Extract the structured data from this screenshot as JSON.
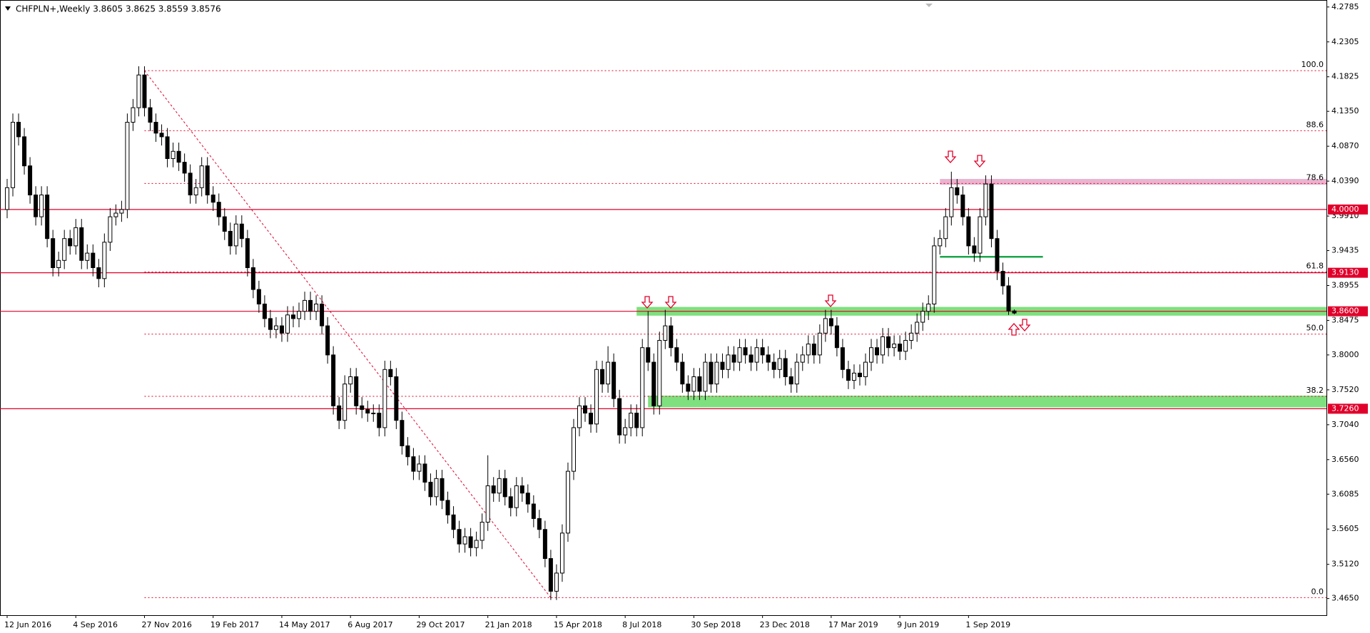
{
  "chart_data": {
    "type": "candlestick",
    "title": "CHFPLN+,Weekly  3.8605 3.8625 3.8559 3.8576",
    "ylim": [
      3.4421,
      4.2881
    ],
    "yticks": [
      4.2785,
      4.2305,
      4.1825,
      {
        "value": 4.135,
        "label": "4.1350"
      },
      {
        "value": 4.087,
        "label": "4.0870"
      },
      {
        "value": 4.039,
        "label": "4.0390"
      },
      {
        "value": 3.991,
        "label": "3.9910"
      },
      3.9435,
      3.8955,
      3.8475,
      {
        "value": 3.8,
        "label": "3.8000"
      },
      {
        "value": 3.752,
        "label": "3.7520"
      },
      {
        "value": 3.704,
        "label": "3.7040"
      },
      {
        "value": 3.656,
        "label": "3.6560"
      },
      3.6085,
      3.5605,
      {
        "value": 3.512,
        "label": "3.5120"
      },
      {
        "value": 3.465,
        "label": "3.4650"
      }
    ],
    "xticks": [
      {
        "value": 0,
        "label": "12 Jun 2016"
      },
      {
        "value": 12,
        "label": "4 Sep 2016"
      },
      {
        "value": 24,
        "label": "27 Nov 2016"
      },
      {
        "value": 36,
        "label": "19 Feb 2017"
      },
      {
        "value": 48,
        "label": "14 May 2017"
      },
      {
        "value": 60,
        "label": "6 Aug 2017"
      },
      {
        "value": 72,
        "label": "29 Oct 2017"
      },
      {
        "value": 84,
        "label": "21 Jan 2018"
      },
      {
        "value": 96,
        "label": "15 Apr 2018"
      },
      {
        "value": 108,
        "label": "8 Jul 2018"
      },
      {
        "value": 120,
        "label": "30 Sep 2018"
      },
      {
        "value": 132,
        "label": "23 Dec 2018"
      },
      {
        "value": 144,
        "label": "17 Mar 2019"
      },
      {
        "value": 156,
        "label": "9 Jun 2019"
      },
      {
        "value": 168,
        "label": "1 Sep 2019"
      }
    ],
    "levels": [
      {
        "value": 4.0,
        "label": "4.0000"
      },
      {
        "value": 3.913,
        "label": "3.9130"
      },
      {
        "value": 3.86,
        "label": "3.8600"
      },
      {
        "value": 3.726,
        "label": "3.7260"
      }
    ],
    "level_color": "#e0002a",
    "fibonacci": {
      "from": 24,
      "to": 95,
      "color": "#e0002a",
      "levels": [
        {
          "ratio": "100.0",
          "price": 4.1909
        },
        {
          "ratio": "88.6",
          "price": 4.1083
        },
        {
          "ratio": "78.6",
          "price": 4.0358
        },
        {
          "ratio": "61.8",
          "price": 3.9141
        },
        {
          "ratio": "50.0",
          "price": 3.8286
        },
        {
          "ratio": "38.2",
          "price": 3.743
        },
        {
          "ratio": "0.0",
          "price": 3.4662
        }
      ]
    },
    "zones": [
      {
        "low": 3.854,
        "high": 3.866,
        "from": 110,
        "color": "#7ee07e"
      },
      {
        "low": 3.728,
        "high": 3.744,
        "from": 112,
        "color": "#7ee07e"
      },
      {
        "low": 4.034,
        "high": 4.042,
        "from": 163,
        "color": "#e8b4d0"
      }
    ],
    "segments": [
      {
        "value": 3.935,
        "from": 163,
        "to": 181,
        "color": "#1aa64a"
      }
    ],
    "up_color": "#ffffff",
    "down_color": "#000000",
    "candles": [
      [
        4.0,
        4.042,
        3.988,
        4.03
      ],
      [
        4.03,
        4.132,
        4.018,
        4.12
      ],
      [
        4.12,
        4.132,
        4.088,
        4.1
      ],
      [
        4.1,
        4.112,
        4.048,
        4.06
      ],
      [
        4.06,
        4.072,
        4.008,
        4.02
      ],
      [
        4.02,
        4.032,
        3.978,
        3.99
      ],
      [
        3.99,
        4.032,
        3.978,
        4.02
      ],
      [
        4.02,
        4.032,
        3.948,
        3.96
      ],
      [
        3.96,
        3.972,
        3.908,
        3.92
      ],
      [
        3.92,
        3.942,
        3.908,
        3.93
      ],
      [
        3.93,
        3.972,
        3.918,
        3.96
      ],
      [
        3.96,
        3.972,
        3.938,
        3.95
      ],
      [
        3.95,
        3.987,
        3.938,
        3.975
      ],
      [
        3.975,
        3.987,
        3.918,
        3.93
      ],
      [
        3.93,
        3.952,
        3.918,
        3.94
      ],
      [
        3.94,
        3.952,
        3.908,
        3.92
      ],
      [
        3.92,
        3.932,
        3.893,
        3.905
      ],
      [
        3.905,
        3.967,
        3.893,
        3.955
      ],
      [
        3.955,
        4.002,
        3.943,
        3.99
      ],
      [
        3.99,
        4.007,
        3.978,
        3.995
      ],
      [
        3.995,
        4.012,
        3.983,
        4.0
      ],
      [
        4.0,
        4.132,
        3.988,
        4.12
      ],
      [
        4.12,
        4.152,
        4.108,
        4.14
      ],
      [
        4.14,
        4.197,
        4.128,
        4.185
      ],
      [
        4.185,
        4.197,
        4.128,
        4.14
      ],
      [
        4.14,
        4.152,
        4.108,
        4.12
      ],
      [
        4.12,
        4.132,
        4.093,
        4.105
      ],
      [
        4.105,
        4.117,
        4.088,
        4.1
      ],
      [
        4.1,
        4.112,
        4.058,
        4.07
      ],
      [
        4.07,
        4.092,
        4.058,
        4.08
      ],
      [
        4.08,
        4.092,
        4.053,
        4.065
      ],
      [
        4.065,
        4.077,
        4.038,
        4.05
      ],
      [
        4.05,
        4.062,
        4.008,
        4.02
      ],
      [
        4.02,
        4.042,
        4.008,
        4.03
      ],
      [
        4.03,
        4.072,
        4.018,
        4.06
      ],
      [
        4.06,
        4.072,
        4.008,
        4.02
      ],
      [
        4.02,
        4.032,
        3.998,
        4.01
      ],
      [
        4.01,
        4.022,
        3.978,
        3.99
      ],
      [
        3.99,
        4.002,
        3.958,
        3.97
      ],
      [
        3.97,
        3.982,
        3.938,
        3.95
      ],
      [
        3.95,
        3.992,
        3.938,
        3.98
      ],
      [
        3.98,
        3.992,
        3.948,
        3.96
      ],
      [
        3.96,
        3.972,
        3.908,
        3.92
      ],
      [
        3.92,
        3.932,
        3.878,
        3.89
      ],
      [
        3.89,
        3.902,
        3.858,
        3.87
      ],
      [
        3.87,
        3.882,
        3.838,
        3.85
      ],
      [
        3.85,
        3.862,
        3.823,
        3.835
      ],
      [
        3.835,
        3.852,
        3.823,
        3.84
      ],
      [
        3.84,
        3.852,
        3.818,
        3.83
      ],
      [
        3.83,
        3.867,
        3.818,
        3.855
      ],
      [
        3.855,
        3.867,
        3.838,
        3.85
      ],
      [
        3.85,
        3.872,
        3.838,
        3.86
      ],
      [
        3.86,
        3.887,
        3.848,
        3.875
      ],
      [
        3.875,
        3.887,
        3.848,
        3.86
      ],
      [
        3.86,
        3.882,
        3.848,
        3.87
      ],
      [
        3.87,
        3.882,
        3.828,
        3.84
      ],
      [
        3.84,
        3.852,
        3.788,
        3.8
      ],
      [
        3.8,
        3.812,
        3.718,
        3.73
      ],
      [
        3.73,
        3.742,
        3.698,
        3.71
      ],
      [
        3.71,
        3.772,
        3.698,
        3.76
      ],
      [
        3.76,
        3.782,
        3.748,
        3.77
      ],
      [
        3.77,
        3.782,
        3.718,
        3.73
      ],
      [
        3.73,
        3.742,
        3.713,
        3.725
      ],
      [
        3.725,
        3.737,
        3.708,
        3.72
      ],
      [
        3.72,
        3.732,
        3.708,
        3.72
      ],
      [
        3.72,
        3.732,
        3.688,
        3.7
      ],
      [
        3.7,
        3.792,
        3.688,
        3.78
      ],
      [
        3.78,
        3.792,
        3.758,
        3.77
      ],
      [
        3.77,
        3.782,
        3.698,
        3.71
      ],
      [
        3.71,
        3.722,
        3.663,
        3.675
      ],
      [
        3.675,
        3.687,
        3.648,
        3.66
      ],
      [
        3.66,
        3.672,
        3.628,
        3.64
      ],
      [
        3.64,
        3.662,
        3.628,
        3.65
      ],
      [
        3.65,
        3.662,
        3.613,
        3.625
      ],
      [
        3.625,
        3.637,
        3.593,
        3.605
      ],
      [
        3.605,
        3.642,
        3.593,
        3.63
      ],
      [
        3.63,
        3.642,
        3.588,
        3.6
      ],
      [
        3.6,
        3.612,
        3.568,
        3.58
      ],
      [
        3.58,
        3.592,
        3.548,
        3.56
      ],
      [
        3.56,
        3.572,
        3.528,
        3.54
      ],
      [
        3.54,
        3.562,
        3.528,
        3.55
      ],
      [
        3.55,
        3.562,
        3.523,
        3.535
      ],
      [
        3.535,
        3.557,
        3.523,
        3.545
      ],
      [
        3.545,
        3.582,
        3.533,
        3.57
      ],
      [
        3.57,
        3.662,
        3.558,
        3.62
      ],
      [
        3.62,
        3.632,
        3.598,
        3.61
      ],
      [
        3.61,
        3.642,
        3.598,
        3.63
      ],
      [
        3.63,
        3.642,
        3.593,
        3.605
      ],
      [
        3.605,
        3.617,
        3.578,
        3.59
      ],
      [
        3.59,
        3.632,
        3.578,
        3.62
      ],
      [
        3.62,
        3.632,
        3.598,
        3.61
      ],
      [
        3.61,
        3.622,
        3.583,
        3.595
      ],
      [
        3.595,
        3.607,
        3.563,
        3.575
      ],
      [
        3.575,
        3.587,
        3.548,
        3.56
      ],
      [
        3.56,
        3.572,
        3.508,
        3.52
      ],
      [
        3.52,
        3.532,
        3.463,
        3.475
      ],
      [
        3.475,
        3.512,
        3.463,
        3.5
      ],
      [
        3.5,
        3.567,
        3.488,
        3.555
      ],
      [
        3.555,
        3.652,
        3.543,
        3.64
      ],
      [
        3.64,
        3.712,
        3.628,
        3.7
      ],
      [
        3.7,
        3.742,
        3.688,
        3.73
      ],
      [
        3.73,
        3.742,
        3.708,
        3.72
      ],
      [
        3.72,
        3.732,
        3.693,
        3.705
      ],
      [
        3.705,
        3.792,
        3.693,
        3.78
      ],
      [
        3.78,
        3.792,
        3.748,
        3.76
      ],
      [
        3.76,
        3.812,
        3.748,
        3.79
      ],
      [
        3.79,
        3.802,
        3.728,
        3.74
      ],
      [
        3.74,
        3.752,
        3.678,
        3.69
      ],
      [
        3.69,
        3.712,
        3.678,
        3.7
      ],
      [
        3.7,
        3.732,
        3.688,
        3.72
      ],
      [
        3.72,
        3.732,
        3.688,
        3.7
      ],
      [
        3.7,
        3.822,
        3.688,
        3.81
      ],
      [
        3.81,
        3.86,
        3.778,
        3.79
      ],
      [
        3.79,
        3.802,
        3.718,
        3.73
      ],
      [
        3.73,
        3.832,
        3.718,
        3.82
      ],
      [
        3.82,
        3.862,
        3.808,
        3.84
      ],
      [
        3.84,
        3.852,
        3.798,
        3.81
      ],
      [
        3.81,
        3.822,
        3.778,
        3.79
      ],
      [
        3.79,
        3.802,
        3.748,
        3.76
      ],
      [
        3.76,
        3.772,
        3.738,
        3.75
      ],
      [
        3.75,
        3.782,
        3.738,
        3.77
      ],
      [
        3.77,
        3.782,
        3.738,
        3.75
      ],
      [
        3.75,
        3.802,
        3.738,
        3.79
      ],
      [
        3.79,
        3.802,
        3.748,
        3.76
      ],
      [
        3.76,
        3.802,
        3.748,
        3.79
      ],
      [
        3.79,
        3.802,
        3.768,
        3.78
      ],
      [
        3.78,
        3.812,
        3.768,
        3.8
      ],
      [
        3.8,
        3.812,
        3.778,
        3.79
      ],
      [
        3.79,
        3.822,
        3.778,
        3.81
      ],
      [
        3.81,
        3.822,
        3.788,
        3.8
      ],
      [
        3.8,
        3.812,
        3.778,
        3.79
      ],
      [
        3.79,
        3.822,
        3.778,
        3.81
      ],
      [
        3.81,
        3.822,
        3.788,
        3.8
      ],
      [
        3.8,
        3.812,
        3.778,
        3.79
      ],
      [
        3.79,
        3.802,
        3.768,
        3.78
      ],
      [
        3.78,
        3.807,
        3.768,
        3.795
      ],
      [
        3.795,
        3.807,
        3.758,
        3.77
      ],
      [
        3.77,
        3.782,
        3.748,
        3.76
      ],
      [
        3.76,
        3.802,
        3.748,
        3.79
      ],
      [
        3.79,
        3.812,
        3.778,
        3.8
      ],
      [
        3.8,
        3.827,
        3.788,
        3.815
      ],
      [
        3.815,
        3.827,
        3.788,
        3.8
      ],
      [
        3.8,
        3.842,
        3.788,
        3.83
      ],
      [
        3.83,
        3.862,
        3.818,
        3.85
      ],
      [
        3.85,
        3.862,
        3.828,
        3.84
      ],
      [
        3.84,
        3.852,
        3.798,
        3.81
      ],
      [
        3.81,
        3.822,
        3.768,
        3.78
      ],
      [
        3.78,
        3.792,
        3.753,
        3.765
      ],
      [
        3.765,
        3.787,
        3.753,
        3.775
      ],
      [
        3.775,
        3.787,
        3.758,
        3.77
      ],
      [
        3.77,
        3.802,
        3.758,
        3.79
      ],
      [
        3.79,
        3.822,
        3.778,
        3.81
      ],
      [
        3.81,
        3.822,
        3.788,
        3.8
      ],
      [
        3.8,
        3.837,
        3.788,
        3.825
      ],
      [
        3.825,
        3.837,
        3.798,
        3.81
      ],
      [
        3.81,
        3.827,
        3.798,
        3.815
      ],
      [
        3.815,
        3.827,
        3.793,
        3.805
      ],
      [
        3.805,
        3.832,
        3.793,
        3.82
      ],
      [
        3.82,
        3.842,
        3.808,
        3.83
      ],
      [
        3.83,
        3.857,
        3.818,
        3.845
      ],
      [
        3.845,
        3.872,
        3.833,
        3.86
      ],
      [
        3.86,
        3.882,
        3.848,
        3.87
      ],
      [
        3.87,
        3.962,
        3.858,
        3.95
      ],
      [
        3.95,
        3.972,
        3.938,
        3.96
      ],
      [
        3.96,
        4.002,
        3.948,
        3.99
      ],
      [
        3.99,
        4.052,
        3.978,
        4.03
      ],
      [
        4.03,
        4.042,
        4.008,
        4.02
      ],
      [
        4.02,
        4.032,
        3.978,
        3.99
      ],
      [
        3.99,
        4.002,
        3.938,
        3.95
      ],
      [
        3.95,
        3.962,
        3.928,
        3.94
      ],
      [
        3.94,
        4.002,
        3.928,
        3.99
      ],
      [
        3.99,
        4.047,
        3.978,
        4.035
      ],
      [
        4.035,
        4.047,
        3.948,
        3.96
      ],
      [
        3.96,
        3.972,
        3.903,
        3.915
      ],
      [
        3.915,
        3.927,
        3.883,
        3.895
      ],
      [
        3.895,
        3.907,
        3.855,
        3.8605
      ],
      [
        3.8605,
        3.8625,
        3.8559,
        3.8576
      ]
    ]
  }
}
